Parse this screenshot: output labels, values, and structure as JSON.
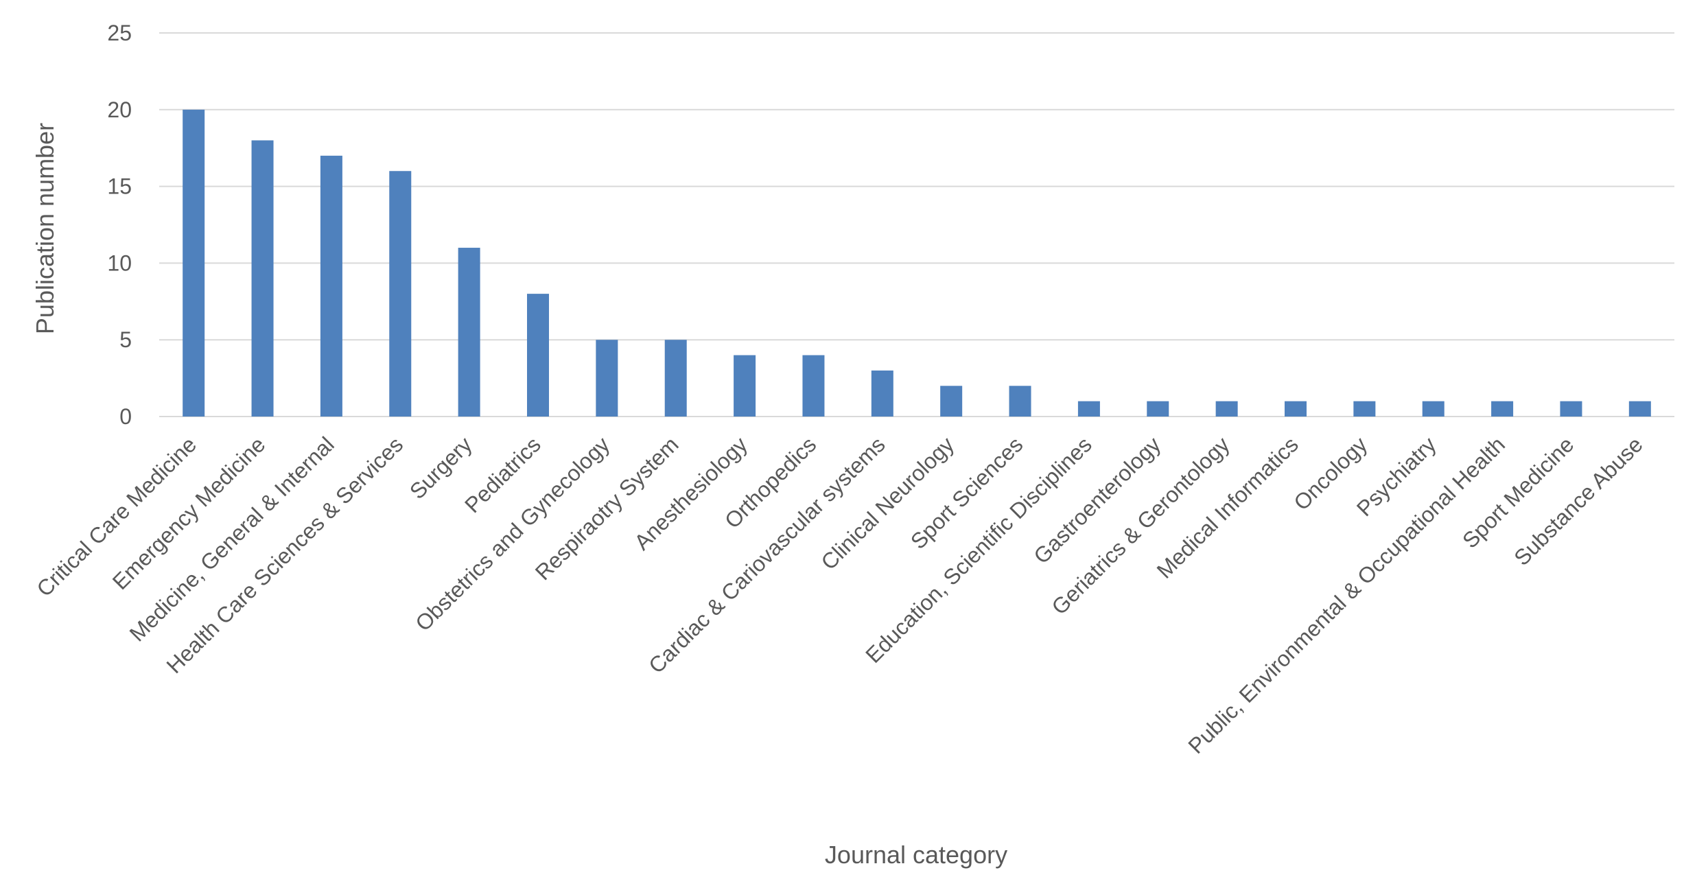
{
  "chart_data": {
    "type": "bar",
    "title": "",
    "xlabel": "Journal category",
    "ylabel": "Publication number",
    "ylim": [
      0,
      25
    ],
    "yticks": [
      0,
      5,
      10,
      15,
      20,
      25
    ],
    "grid": true,
    "legend": "none",
    "bar_color": "#4f81bd",
    "categories": [
      "Critical Care Medicine",
      "Emergency Medicine",
      "Medicine, General & Internal",
      "Health Care Sciences & Services",
      "Surgery",
      "Pediatrics",
      "Obstetrics and Gynecology",
      "Respiraotry System",
      "Anesthesiology",
      "Orthopedics",
      "Cardiac & Cariovascular systems",
      "Clinical Neurology",
      "Sport Sciences",
      "Education, Scientific Disciplines",
      "Gastroenterology",
      "Geriatrics & Gerontology",
      "Medical Informatics",
      "Oncology",
      "Psychiatry",
      "Public, Environmental & Occupational Health",
      "Sport Medicine",
      "Substance Abuse"
    ],
    "values": [
      20,
      18,
      17,
      16,
      11,
      8,
      5,
      5,
      4,
      4,
      3,
      2,
      2,
      1,
      1,
      1,
      1,
      1,
      1,
      1,
      1,
      1
    ]
  }
}
